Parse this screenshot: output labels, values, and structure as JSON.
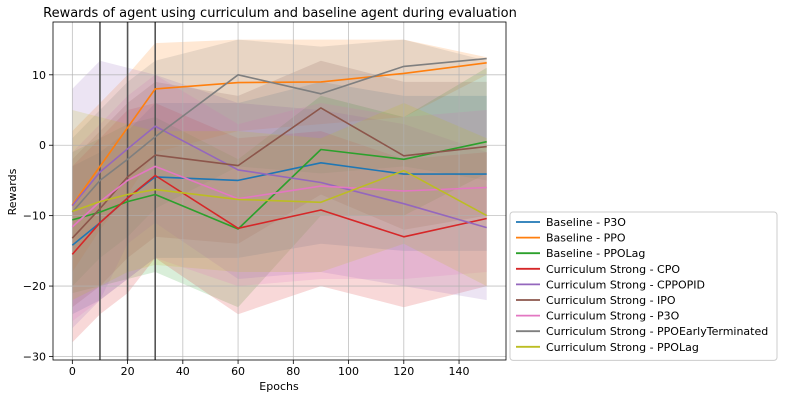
{
  "chart_data": {
    "type": "line",
    "title": "Rewards of agent using curriculum and baseline agent during evaluation",
    "xlabel": "Epochs",
    "ylabel": "Rewards",
    "xlim": [
      -7,
      157
    ],
    "ylim": [
      -30.5,
      17.5
    ],
    "xticks": [
      0,
      20,
      40,
      60,
      80,
      100,
      120,
      140
    ],
    "yticks": [
      -30,
      -20,
      -10,
      0,
      10
    ],
    "grid": true,
    "legend_position": "outside-right-bottom",
    "vlines": [
      10,
      20,
      30
    ],
    "x": [
      0,
      10,
      20,
      30,
      60,
      90,
      120,
      150
    ],
    "series": [
      {
        "name": "Baseline - P3O",
        "color": "#1f77b4",
        "values": [
          -14.2,
          -11.0,
          -7.5,
          -4.5,
          -5.0,
          -2.5,
          -4.1,
          -4.1
        ],
        "lower": [
          -24,
          -22,
          -19,
          -16,
          -16,
          -14,
          -15,
          -15
        ],
        "upper": [
          -3,
          -1,
          2,
          6,
          6,
          9,
          7,
          7
        ]
      },
      {
        "name": "Baseline - PPO",
        "color": "#ff7f0e",
        "values": [
          -8.5,
          -3.0,
          2.5,
          8.0,
          8.9,
          9.0,
          10.2,
          11.7
        ],
        "lower": [
          -18,
          -12,
          -7,
          -1,
          2,
          3,
          4,
          10
        ],
        "upper": [
          2,
          6,
          10,
          14.5,
          15,
          15,
          15,
          12.5
        ]
      },
      {
        "name": "Baseline - PPOLag",
        "color": "#2ca02c",
        "values": [
          -10.6,
          -9.5,
          -8.0,
          -7.0,
          -11.9,
          -0.6,
          -2.0,
          0.5
        ],
        "lower": [
          -21,
          -20,
          -19,
          -18,
          -23,
          -10,
          -10,
          -4
        ],
        "upper": [
          -1,
          1,
          3,
          4,
          -2,
          7,
          4,
          11
        ]
      },
      {
        "name": "Curriculum Strong - CPO",
        "color": "#d62728",
        "values": [
          -15.5,
          -11.0,
          -7.5,
          -4.3,
          -11.8,
          -9.2,
          -13.0,
          -10.4
        ],
        "lower": [
          -28,
          -24,
          -21,
          -16,
          -24,
          -20,
          -23,
          -20
        ],
        "upper": [
          -3,
          1,
          5,
          6,
          1,
          2,
          -2,
          -1
        ]
      },
      {
        "name": "Curriculum Strong - CPPOPID",
        "color": "#9467bd",
        "values": [
          -8.6,
          -3.8,
          -0.5,
          2.7,
          -3.5,
          -5.3,
          -8.3,
          -11.7
        ],
        "lower": [
          -26,
          -22,
          -14,
          -11,
          -19,
          -18,
          -20,
          -22
        ],
        "upper": [
          8,
          12,
          11,
          10,
          6,
          5,
          3,
          -1
        ]
      },
      {
        "name": "Curriculum Strong - IPO",
        "color": "#8c564b",
        "values": [
          -13.2,
          -9.0,
          -4.5,
          -1.4,
          -2.9,
          5.3,
          -1.5,
          -0.2
        ],
        "lower": [
          -23,
          -20,
          -16,
          -13,
          -14,
          -7,
          -12,
          -10
        ],
        "upper": [
          -2,
          2,
          6,
          9,
          7,
          12,
          9,
          9
        ]
      },
      {
        "name": "Curriculum Strong - P3O",
        "color": "#e377c2",
        "values": [
          -11.6,
          -8.0,
          -5.0,
          -3.0,
          -7.6,
          -5.8,
          -6.5,
          -6.0
        ],
        "lower": [
          -25,
          -22,
          -19,
          -16,
          -20,
          -19,
          -19,
          -18
        ],
        "upper": [
          -1,
          3,
          7,
          10,
          3,
          6,
          4,
          5
        ]
      },
      {
        "name": "Curriculum Strong - PPOEarlyTerminated",
        "color": "#7f7f7f",
        "values": [
          -9.5,
          -5.0,
          -2.0,
          1.2,
          10.0,
          7.3,
          11.2,
          12.3
        ],
        "lower": [
          -20,
          -16,
          -13,
          -9,
          -3,
          -4,
          -3,
          -5
        ],
        "upper": [
          1,
          5,
          9,
          12,
          15,
          14,
          15,
          12
        ]
      },
      {
        "name": "Curriculum Strong - PPOLag",
        "color": "#bcbd22",
        "values": [
          -9.4,
          -8.0,
          -7.0,
          -6.3,
          -7.7,
          -8.1,
          -3.6,
          -10.0
        ],
        "lower": [
          -22,
          -20,
          -18,
          -17,
          -18,
          -18,
          -14,
          -20
        ],
        "upper": [
          5,
          4,
          3,
          2,
          2,
          1,
          6,
          1
        ]
      }
    ]
  }
}
